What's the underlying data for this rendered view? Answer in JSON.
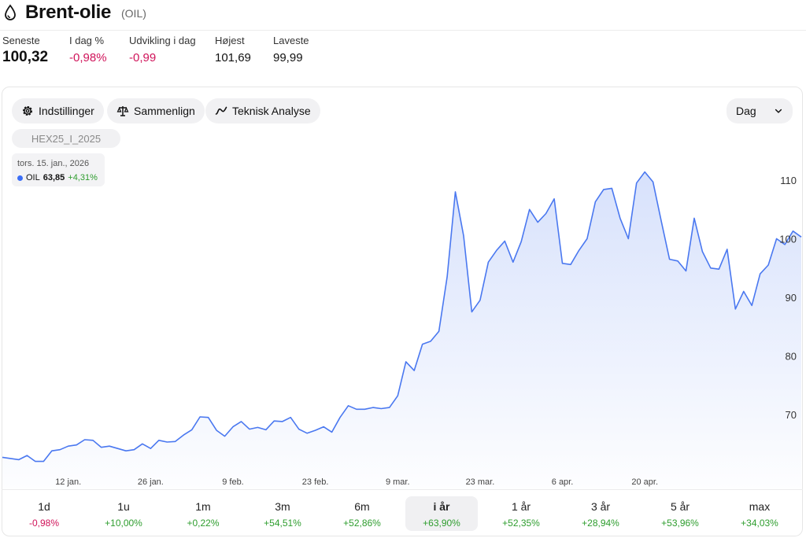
{
  "header": {
    "title": "Brent-olie",
    "ticker": "(OIL)",
    "icon": "drop-icon"
  },
  "stats": [
    {
      "label": "Seneste",
      "value": "100,32",
      "tone": "default"
    },
    {
      "label": "I dag %",
      "value": "-0,98%",
      "tone": "neg"
    },
    {
      "label": "Udvikling i dag",
      "value": "-0,99",
      "tone": "neg"
    },
    {
      "label": "Højest",
      "value": "101,69",
      "tone": "default"
    },
    {
      "label": "Laveste",
      "value": "99,99",
      "tone": "default"
    }
  ],
  "toolbar": {
    "settings_label": "Indstillinger",
    "compare_label": "Sammenlign",
    "technical_label": "Teknisk Analyse",
    "period_value": "Dag"
  },
  "preset_label": "HEX25_I_2025",
  "tooltip": {
    "date": "tors. 15. jan., 2026",
    "series": "OIL",
    "price": "63,85",
    "change": "+4,31%"
  },
  "chart_data": {
    "type": "area",
    "color": "#4a78f0",
    "ylim": [
      62,
      113
    ],
    "ytick_values": [
      70,
      80,
      90,
      100,
      110
    ],
    "yticks": [
      "70",
      "80",
      "90",
      "100",
      "110"
    ],
    "xtick_positions": [
      8,
      18,
      28,
      38,
      48,
      58,
      68,
      78
    ],
    "xticks": [
      "12 jan.",
      "26 jan.",
      "9 feb.",
      "23 feb.",
      "9 mar.",
      "23 mar.",
      "6 apr.",
      "20 apr."
    ],
    "values": [
      62.7,
      62.5,
      62.3,
      63.0,
      62.0,
      62.0,
      63.8,
      64.0,
      64.6,
      64.8,
      65.7,
      65.6,
      64.4,
      64.6,
      64.2,
      63.8,
      64.0,
      65.0,
      64.2,
      65.6,
      65.3,
      65.4,
      66.5,
      67.4,
      69.6,
      69.5,
      67.3,
      66.3,
      67.9,
      68.8,
      67.5,
      67.8,
      67.4,
      68.9,
      68.8,
      69.5,
      67.5,
      66.8,
      67.3,
      67.9,
      67.0,
      69.5,
      71.5,
      70.9,
      70.9,
      71.2,
      71.0,
      71.2,
      73.2,
      79.0,
      77.5,
      82.0,
      82.5,
      84.2,
      93.5,
      108.0,
      100.5,
      87.5,
      89.5,
      96.0,
      98.0,
      99.6,
      96.0,
      99.5,
      105.0,
      102.8,
      104.3,
      106.8,
      95.8,
      95.6,
      98.0,
      100.0,
      106.3,
      108.4,
      108.6,
      103.5,
      100.0,
      109.5,
      111.4,
      109.7,
      103.0,
      96.5,
      96.2,
      94.5,
      103.5,
      97.8,
      95.0,
      94.8,
      98.2,
      88.0,
      91.0,
      88.6,
      94.0,
      95.5,
      100.0,
      99.0,
      101.3,
      100.3
    ]
  },
  "periods": [
    {
      "label": "1d",
      "change": "-0,98%",
      "tone": "neg",
      "active": false
    },
    {
      "label": "1u",
      "change": "+10,00%",
      "tone": "pos",
      "active": false
    },
    {
      "label": "1m",
      "change": "+0,22%",
      "tone": "pos",
      "active": false
    },
    {
      "label": "3m",
      "change": "+54,51%",
      "tone": "pos",
      "active": false
    },
    {
      "label": "6m",
      "change": "+52,86%",
      "tone": "pos",
      "active": false
    },
    {
      "label": "i år",
      "change": "+63,90%",
      "tone": "pos",
      "active": true
    },
    {
      "label": "1 år",
      "change": "+52,35%",
      "tone": "pos",
      "active": false
    },
    {
      "label": "3 år",
      "change": "+28,94%",
      "tone": "pos",
      "active": false
    },
    {
      "label": "5 år",
      "change": "+53,96%",
      "tone": "pos",
      "active": false
    },
    {
      "label": "max",
      "change": "+34,03%",
      "tone": "pos",
      "active": false
    }
  ]
}
